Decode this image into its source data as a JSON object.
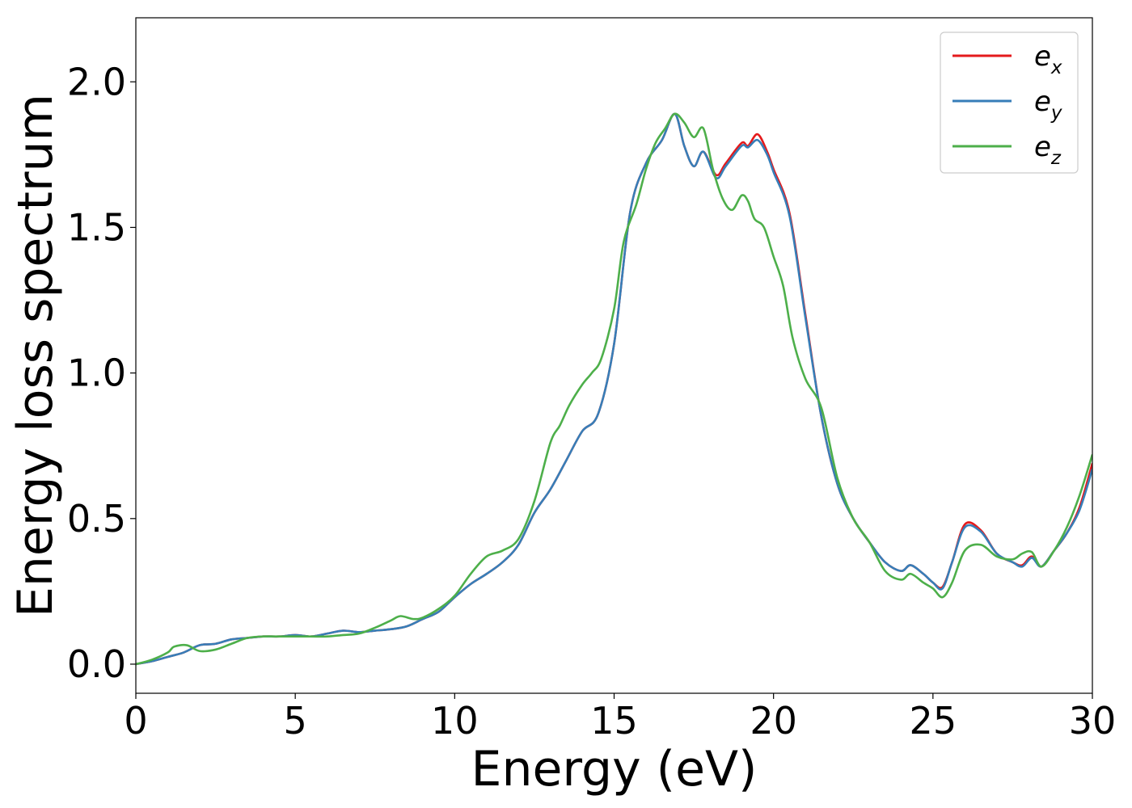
{
  "chart_data": {
    "type": "line",
    "xlabel": "Energy (eV)",
    "ylabel": "Energy loss spectrum",
    "xlim": [
      0,
      30
    ],
    "ylim": [
      -0.1,
      2.22
    ],
    "xticks": [
      0,
      5,
      10,
      15,
      20,
      25,
      30
    ],
    "xtick_labels": [
      "0",
      "5",
      "10",
      "15",
      "20",
      "25",
      "30"
    ],
    "yticks": [
      0.0,
      0.5,
      1.0,
      1.5,
      2.0
    ],
    "ytick_labels": [
      "0.0",
      "0.5",
      "1.0",
      "1.5",
      "2.0"
    ],
    "grid": false,
    "legend_position": "top-right",
    "series": [
      {
        "name": "e_x",
        "label_base": "e",
        "label_sub": "x",
        "color": "#e41a1c",
        "points": [
          [
            0,
            0.0
          ],
          [
            0.5,
            0.01
          ],
          [
            1.0,
            0.025
          ],
          [
            1.5,
            0.04
          ],
          [
            2.0,
            0.065
          ],
          [
            2.5,
            0.07
          ],
          [
            3.0,
            0.085
          ],
          [
            3.5,
            0.09
          ],
          [
            4.0,
            0.095
          ],
          [
            4.5,
            0.095
          ],
          [
            5.0,
            0.1
          ],
          [
            5.5,
            0.095
          ],
          [
            6.0,
            0.105
          ],
          [
            6.5,
            0.115
          ],
          [
            7.0,
            0.11
          ],
          [
            7.5,
            0.115
          ],
          [
            8.0,
            0.12
          ],
          [
            8.5,
            0.13
          ],
          [
            9.0,
            0.155
          ],
          [
            9.5,
            0.18
          ],
          [
            10.0,
            0.23
          ],
          [
            10.5,
            0.275
          ],
          [
            11.0,
            0.31
          ],
          [
            11.5,
            0.35
          ],
          [
            12.0,
            0.41
          ],
          [
            12.5,
            0.52
          ],
          [
            13.0,
            0.6
          ],
          [
            13.5,
            0.7
          ],
          [
            14.0,
            0.8
          ],
          [
            14.5,
            0.86
          ],
          [
            15.0,
            1.1
          ],
          [
            15.5,
            1.55
          ],
          [
            16.0,
            1.72
          ],
          [
            16.5,
            1.8
          ],
          [
            16.9,
            1.89
          ],
          [
            17.2,
            1.78
          ],
          [
            17.5,
            1.71
          ],
          [
            17.8,
            1.76
          ],
          [
            18.2,
            1.68
          ],
          [
            18.5,
            1.72
          ],
          [
            19.0,
            1.79
          ],
          [
            19.2,
            1.78
          ],
          [
            19.5,
            1.82
          ],
          [
            19.8,
            1.76
          ],
          [
            20.0,
            1.7
          ],
          [
            20.5,
            1.55
          ],
          [
            21.0,
            1.2
          ],
          [
            21.5,
            0.85
          ],
          [
            22.0,
            0.62
          ],
          [
            22.5,
            0.5
          ],
          [
            23.0,
            0.42
          ],
          [
            23.5,
            0.35
          ],
          [
            24.0,
            0.32
          ],
          [
            24.3,
            0.34
          ],
          [
            24.7,
            0.31
          ],
          [
            25.0,
            0.28
          ],
          [
            25.3,
            0.265
          ],
          [
            25.6,
            0.35
          ],
          [
            26.0,
            0.48
          ],
          [
            26.5,
            0.46
          ],
          [
            27.0,
            0.38
          ],
          [
            27.5,
            0.35
          ],
          [
            27.8,
            0.34
          ],
          [
            28.1,
            0.37
          ],
          [
            28.4,
            0.335
          ],
          [
            28.8,
            0.39
          ],
          [
            29.2,
            0.45
          ],
          [
            29.6,
            0.54
          ],
          [
            30.0,
            0.69
          ]
        ]
      },
      {
        "name": "e_y",
        "label_base": "e",
        "label_sub": "y",
        "color": "#377eb8",
        "points": [
          [
            0,
            0.0
          ],
          [
            0.5,
            0.01
          ],
          [
            1.0,
            0.025
          ],
          [
            1.5,
            0.04
          ],
          [
            2.0,
            0.065
          ],
          [
            2.5,
            0.07
          ],
          [
            3.0,
            0.085
          ],
          [
            3.5,
            0.09
          ],
          [
            4.0,
            0.095
          ],
          [
            4.5,
            0.095
          ],
          [
            5.0,
            0.1
          ],
          [
            5.5,
            0.095
          ],
          [
            6.0,
            0.105
          ],
          [
            6.5,
            0.115
          ],
          [
            7.0,
            0.11
          ],
          [
            7.5,
            0.115
          ],
          [
            8.0,
            0.12
          ],
          [
            8.5,
            0.13
          ],
          [
            9.0,
            0.155
          ],
          [
            9.5,
            0.18
          ],
          [
            10.0,
            0.23
          ],
          [
            10.5,
            0.275
          ],
          [
            11.0,
            0.31
          ],
          [
            11.5,
            0.35
          ],
          [
            12.0,
            0.41
          ],
          [
            12.5,
            0.52
          ],
          [
            13.0,
            0.6
          ],
          [
            13.5,
            0.7
          ],
          [
            14.0,
            0.8
          ],
          [
            14.5,
            0.86
          ],
          [
            15.0,
            1.1
          ],
          [
            15.5,
            1.55
          ],
          [
            16.0,
            1.72
          ],
          [
            16.5,
            1.8
          ],
          [
            16.9,
            1.89
          ],
          [
            17.2,
            1.78
          ],
          [
            17.5,
            1.71
          ],
          [
            17.8,
            1.76
          ],
          [
            18.2,
            1.67
          ],
          [
            18.5,
            1.71
          ],
          [
            19.0,
            1.78
          ],
          [
            19.2,
            1.775
          ],
          [
            19.5,
            1.8
          ],
          [
            19.8,
            1.75
          ],
          [
            20.0,
            1.69
          ],
          [
            20.5,
            1.54
          ],
          [
            21.0,
            1.19
          ],
          [
            21.5,
            0.85
          ],
          [
            22.0,
            0.62
          ],
          [
            22.5,
            0.5
          ],
          [
            23.0,
            0.42
          ],
          [
            23.5,
            0.35
          ],
          [
            24.0,
            0.32
          ],
          [
            24.3,
            0.34
          ],
          [
            24.7,
            0.31
          ],
          [
            25.0,
            0.28
          ],
          [
            25.3,
            0.26
          ],
          [
            25.6,
            0.35
          ],
          [
            26.0,
            0.47
          ],
          [
            26.5,
            0.455
          ],
          [
            27.0,
            0.38
          ],
          [
            27.5,
            0.35
          ],
          [
            27.8,
            0.335
          ],
          [
            28.1,
            0.365
          ],
          [
            28.4,
            0.335
          ],
          [
            28.8,
            0.39
          ],
          [
            29.2,
            0.45
          ],
          [
            29.6,
            0.53
          ],
          [
            30.0,
            0.67
          ]
        ]
      },
      {
        "name": "e_z",
        "label_base": "e",
        "label_sub": "z",
        "color": "#4daf4a",
        "points": [
          [
            0,
            0.0
          ],
          [
            0.5,
            0.015
          ],
          [
            1.0,
            0.04
          ],
          [
            1.2,
            0.06
          ],
          [
            1.6,
            0.065
          ],
          [
            2.0,
            0.045
          ],
          [
            2.5,
            0.05
          ],
          [
            3.0,
            0.07
          ],
          [
            3.5,
            0.09
          ],
          [
            4.0,
            0.095
          ],
          [
            4.5,
            0.095
          ],
          [
            5.0,
            0.095
          ],
          [
            5.5,
            0.095
          ],
          [
            6.0,
            0.095
          ],
          [
            6.5,
            0.1
          ],
          [
            7.0,
            0.105
          ],
          [
            7.5,
            0.125
          ],
          [
            8.0,
            0.15
          ],
          [
            8.3,
            0.165
          ],
          [
            8.7,
            0.155
          ],
          [
            9.0,
            0.16
          ],
          [
            9.5,
            0.19
          ],
          [
            10.0,
            0.235
          ],
          [
            10.5,
            0.31
          ],
          [
            11.0,
            0.37
          ],
          [
            11.5,
            0.39
          ],
          [
            12.0,
            0.43
          ],
          [
            12.5,
            0.56
          ],
          [
            13.0,
            0.76
          ],
          [
            13.3,
            0.82
          ],
          [
            13.6,
            0.89
          ],
          [
            14.0,
            0.96
          ],
          [
            14.3,
            1.0
          ],
          [
            14.6,
            1.05
          ],
          [
            15.0,
            1.22
          ],
          [
            15.3,
            1.45
          ],
          [
            15.7,
            1.58
          ],
          [
            16.0,
            1.7
          ],
          [
            16.3,
            1.79
          ],
          [
            16.6,
            1.84
          ],
          [
            16.9,
            1.89
          ],
          [
            17.2,
            1.86
          ],
          [
            17.5,
            1.81
          ],
          [
            17.8,
            1.84
          ],
          [
            18.1,
            1.7
          ],
          [
            18.4,
            1.6
          ],
          [
            18.7,
            1.56
          ],
          [
            19.0,
            1.61
          ],
          [
            19.2,
            1.59
          ],
          [
            19.4,
            1.53
          ],
          [
            19.7,
            1.5
          ],
          [
            20.0,
            1.4
          ],
          [
            20.3,
            1.3
          ],
          [
            20.6,
            1.12
          ],
          [
            21.0,
            0.98
          ],
          [
            21.5,
            0.88
          ],
          [
            22.0,
            0.64
          ],
          [
            22.5,
            0.5
          ],
          [
            23.0,
            0.42
          ],
          [
            23.5,
            0.32
          ],
          [
            24.0,
            0.29
          ],
          [
            24.3,
            0.31
          ],
          [
            24.7,
            0.28
          ],
          [
            25.0,
            0.26
          ],
          [
            25.3,
            0.23
          ],
          [
            25.6,
            0.28
          ],
          [
            26.0,
            0.39
          ],
          [
            26.5,
            0.41
          ],
          [
            27.0,
            0.37
          ],
          [
            27.5,
            0.36
          ],
          [
            27.8,
            0.38
          ],
          [
            28.1,
            0.385
          ],
          [
            28.4,
            0.335
          ],
          [
            28.8,
            0.39
          ],
          [
            29.2,
            0.47
          ],
          [
            29.6,
            0.58
          ],
          [
            30.0,
            0.72
          ]
        ]
      }
    ]
  }
}
